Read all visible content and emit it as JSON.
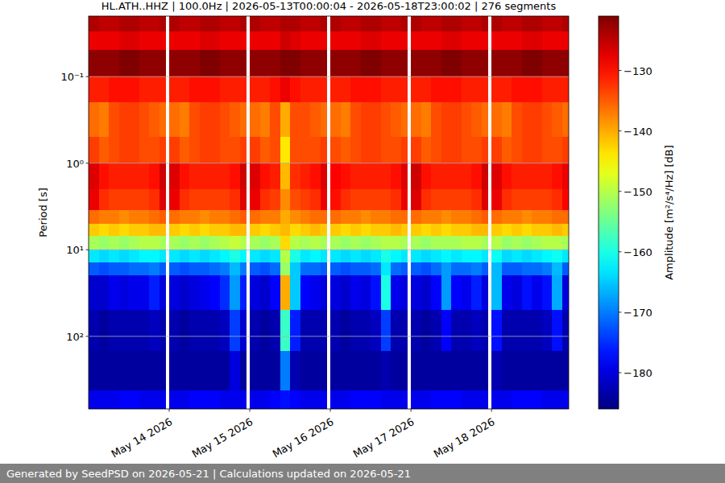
{
  "chart_data": {
    "type": "heatmap",
    "title": "HL.ATH..HHZ | 100.0Hz | 2026-05-13T00:00:04 - 2026-05-18T23:00:02 | 276 segments",
    "y_label": "Period [s]",
    "footer": "Generated by SeedPSD on 2026-05-21 | Calculations updated on 2026-05-21",
    "log": "y",
    "grid": true,
    "xlim": [
      "2026-05-13T00:00",
      "2026-05-18T23:00"
    ],
    "xticks": [
      {
        "value": "2026-05-14T00:00",
        "label": "May 14 2026"
      },
      {
        "value": "2026-05-15T00:00",
        "label": "May 15 2026"
      },
      {
        "value": "2026-05-16T00:00",
        "label": "May 16 2026"
      },
      {
        "value": "2026-05-17T00:00",
        "label": "May 17 2026"
      },
      {
        "value": "2026-05-18T00:00",
        "label": "May 18 2026"
      }
    ],
    "ylim": [
      690,
      0.02
    ],
    "yticks": [
      {
        "value": 0.1,
        "label": "10⁻¹"
      },
      {
        "value": 1,
        "label": "10⁰"
      },
      {
        "value": 10,
        "label": "10¹"
      },
      {
        "value": 100,
        "label": "10²"
      }
    ],
    "colorbar": {
      "label": "Amplitude [m²/s⁴/Hz] [dB]",
      "range": [
        -186,
        -121
      ],
      "ticks": [
        {
          "value": -130,
          "label": "−130"
        },
        {
          "value": -140,
          "label": "−140"
        },
        {
          "value": -150,
          "label": "−150"
        },
        {
          "value": -160,
          "label": "−160"
        },
        {
          "value": -170,
          "label": "−170"
        },
        {
          "value": -180,
          "label": "−180"
        }
      ]
    },
    "x": [
      "2026-05-13T00:00",
      "2026-05-13T03:00",
      "2026-05-13T06:00",
      "2026-05-13T09:00",
      "2026-05-13T12:00",
      "2026-05-13T15:00",
      "2026-05-13T18:00",
      "2026-05-13T21:00",
      "2026-05-13T23:00",
      "2026-05-14T00:00",
      "2026-05-14T03:00",
      "2026-05-14T06:00",
      "2026-05-14T09:00",
      "2026-05-14T12:00",
      "2026-05-14T15:00",
      "2026-05-14T18:00",
      "2026-05-14T21:00",
      "2026-05-14T23:00",
      "2026-05-15T00:00",
      "2026-05-15T03:00",
      "2026-05-15T06:00",
      "2026-05-15T09:00",
      "2026-05-15T12:00",
      "2026-05-15T15:00",
      "2026-05-15T18:00",
      "2026-05-15T21:00",
      "2026-05-15T23:00",
      "2026-05-16T00:00",
      "2026-05-16T03:00",
      "2026-05-16T06:00",
      "2026-05-16T09:00",
      "2026-05-16T12:00",
      "2026-05-16T15:00",
      "2026-05-16T18:00",
      "2026-05-16T21:00",
      "2026-05-16T23:00",
      "2026-05-17T00:00",
      "2026-05-17T03:00",
      "2026-05-17T06:00",
      "2026-05-17T09:00",
      "2026-05-17T12:00",
      "2026-05-17T15:00",
      "2026-05-17T18:00",
      "2026-05-17T21:00",
      "2026-05-17T23:00",
      "2026-05-18T00:00",
      "2026-05-18T03:00",
      "2026-05-18T06:00",
      "2026-05-18T09:00",
      "2026-05-18T12:00",
      "2026-05-18T15:00",
      "2026-05-18T18:00",
      "2026-05-18T21:00",
      "2026-05-18T23:00"
    ],
    "y": [
      0.02,
      0.03,
      0.05,
      0.1,
      0.2,
      0.5,
      1,
      2,
      3.5,
      5,
      7,
      10,
      14,
      20,
      50,
      150,
      420,
      690
    ],
    "values": [
      [
        -124,
        -128,
        -122,
        -131,
        -136,
        -133,
        -127,
        -128,
        -136,
        -142,
        -151,
        -163,
        -172,
        -181,
        -183,
        -184,
        -179
      ],
      [
        -125,
        -128,
        -122,
        -131,
        -137,
        -135,
        -130,
        -132,
        -137,
        -143,
        -152,
        -164,
        -173,
        -181,
        -184,
        -184,
        -179
      ],
      [
        -125,
        -128,
        -122,
        -130,
        -134,
        -134,
        -131,
        -133,
        -137,
        -142,
        -151,
        -163,
        -172,
        -179,
        -183,
        -184,
        -179
      ],
      [
        -124,
        -127,
        -121,
        -130,
        -133,
        -133,
        -131,
        -133,
        -138,
        -143,
        -152,
        -164,
        -172,
        -180,
        -183,
        -184,
        -178
      ],
      [
        -124,
        -127,
        -121,
        -130,
        -133,
        -133,
        -131,
        -133,
        -137,
        -142,
        -151,
        -163,
        -171,
        -179,
        -183,
        -184,
        -178
      ],
      [
        -125,
        -128,
        -122,
        -131,
        -134,
        -134,
        -131,
        -133,
        -137,
        -142,
        -150,
        -162,
        -171,
        -179,
        -183,
        -184,
        -179
      ],
      [
        -125,
        -128,
        -122,
        -131,
        -135,
        -134,
        -130,
        -132,
        -136,
        -141,
        -150,
        -162,
        -170,
        -176,
        -182,
        -184,
        -179
      ],
      [
        -124,
        -128,
        -122,
        -131,
        -136,
        -133,
        -126,
        -127,
        -135,
        -141,
        -151,
        -163,
        -172,
        -180,
        -183,
        -184,
        -179
      ],
      null,
      [
        -124,
        -128,
        -122,
        -131,
        -136,
        -133,
        -127,
        -128,
        -136,
        -142,
        -151,
        -163,
        -172,
        -180,
        -183,
        -184,
        -179
      ],
      [
        -125,
        -128,
        -122,
        -131,
        -137,
        -135,
        -130,
        -132,
        -137,
        -143,
        -152,
        -164,
        -173,
        -181,
        -184,
        -184,
        -179
      ],
      [
        -125,
        -128,
        -122,
        -130,
        -134,
        -134,
        -131,
        -133,
        -137,
        -142,
        -151,
        -163,
        -172,
        -180,
        -183,
        -184,
        -178
      ],
      [
        -124,
        -127,
        -121,
        -130,
        -133,
        -133,
        -131,
        -133,
        -138,
        -143,
        -152,
        -164,
        -172,
        -179,
        -183,
        -184,
        -178
      ],
      [
        -124,
        -127,
        -121,
        -130,
        -133,
        -133,
        -131,
        -133,
        -137,
        -142,
        -151,
        -163,
        -171,
        -178,
        -183,
        -184,
        -178
      ],
      [
        -125,
        -128,
        -122,
        -131,
        -134,
        -134,
        -131,
        -133,
        -137,
        -142,
        -150,
        -162,
        -170,
        -175,
        -182,
        -184,
        -179
      ],
      [
        -125,
        -128,
        -122,
        -131,
        -135,
        -134,
        -130,
        -132,
        -136,
        -141,
        -149,
        -160,
        -166,
        -168,
        -174,
        -180,
        -179
      ],
      [
        -124,
        -128,
        -122,
        -131,
        -136,
        -133,
        -126,
        -127,
        -135,
        -141,
        -150,
        -162,
        -170,
        -176,
        -181,
        -184,
        -179
      ],
      null,
      [
        -124,
        -128,
        -122,
        -131,
        -136,
        -133,
        -127,
        -128,
        -136,
        -142,
        -151,
        -163,
        -172,
        -180,
        -183,
        -184,
        -179
      ],
      [
        -125,
        -128,
        -122,
        -131,
        -137,
        -135,
        -130,
        -132,
        -137,
        -143,
        -152,
        -164,
        -173,
        -181,
        -184,
        -184,
        -179
      ],
      [
        -125,
        -128,
        -122,
        -130,
        -134,
        -134,
        -131,
        -133,
        -137,
        -142,
        -151,
        -163,
        -171,
        -178,
        -183,
        -184,
        -178
      ],
      [
        -124,
        -126,
        -121,
        -128,
        -140,
        -144,
        -141,
        -138,
        -140,
        -141,
        -143,
        -150,
        -152,
        -140,
        -158,
        -170,
        -177
      ],
      [
        -124,
        -127,
        -121,
        -130,
        -134,
        -134,
        -132,
        -134,
        -138,
        -143,
        -150,
        -160,
        -165,
        -165,
        -176,
        -183,
        -178
      ],
      [
        -125,
        -128,
        -122,
        -131,
        -134,
        -134,
        -131,
        -133,
        -137,
        -142,
        -151,
        -163,
        -171,
        -178,
        -183,
        -184,
        -179
      ],
      [
        -125,
        -128,
        -122,
        -131,
        -135,
        -134,
        -130,
        -132,
        -136,
        -141,
        -150,
        -162,
        -171,
        -179,
        -183,
        -184,
        -179
      ],
      [
        -124,
        -128,
        -122,
        -131,
        -136,
        -133,
        -127,
        -128,
        -136,
        -142,
        -151,
        -163,
        -172,
        -180,
        -183,
        -184,
        -179
      ],
      null,
      [
        -124,
        -128,
        -122,
        -131,
        -136,
        -134,
        -129,
        -130,
        -136,
        -142,
        -151,
        -163,
        -172,
        -180,
        -183,
        -184,
        -179
      ],
      [
        -125,
        -128,
        -122,
        -131,
        -137,
        -135,
        -130,
        -132,
        -137,
        -143,
        -152,
        -164,
        -173,
        -181,
        -184,
        -184,
        -179
      ],
      [
        -125,
        -128,
        -122,
        -130,
        -134,
        -134,
        -131,
        -133,
        -137,
        -142,
        -151,
        -163,
        -172,
        -179,
        -183,
        -184,
        -178
      ],
      [
        -124,
        -127,
        -121,
        -130,
        -133,
        -133,
        -131,
        -133,
        -138,
        -143,
        -152,
        -164,
        -172,
        -180,
        -183,
        -184,
        -178
      ],
      [
        -124,
        -127,
        -121,
        -130,
        -133,
        -133,
        -131,
        -133,
        -137,
        -142,
        -151,
        -163,
        -171,
        -177,
        -182,
        -184,
        -178
      ],
      [
        -125,
        -128,
        -122,
        -131,
        -134,
        -134,
        -131,
        -133,
        -137,
        -142,
        -150,
        -160,
        -163,
        -160,
        -174,
        -183,
        -179
      ],
      [
        -125,
        -128,
        -122,
        -131,
        -135,
        -134,
        -130,
        -132,
        -136,
        -141,
        -150,
        -162,
        -171,
        -179,
        -183,
        -184,
        -179
      ],
      [
        -124,
        -128,
        -122,
        -131,
        -136,
        -133,
        -127,
        -128,
        -136,
        -142,
        -151,
        -163,
        -172,
        -180,
        -183,
        -184,
        -179
      ],
      null,
      [
        -124,
        -128,
        -122,
        -131,
        -136,
        -133,
        -126,
        -127,
        -136,
        -142,
        -151,
        -163,
        -172,
        -180,
        -183,
        -184,
        -179
      ],
      [
        -125,
        -128,
        -122,
        -131,
        -137,
        -135,
        -130,
        -132,
        -137,
        -143,
        -152,
        -164,
        -173,
        -181,
        -184,
        -184,
        -179
      ],
      [
        -125,
        -128,
        -122,
        -130,
        -134,
        -134,
        -131,
        -133,
        -137,
        -142,
        -151,
        -163,
        -171,
        -178,
        -183,
        -184,
        -178
      ],
      [
        -124,
        -127,
        -121,
        -130,
        -133,
        -133,
        -131,
        -133,
        -138,
        -143,
        -151,
        -162,
        -168,
        -168,
        -178,
        -184,
        -178
      ],
      [
        -124,
        -127,
        -121,
        -130,
        -133,
        -133,
        -131,
        -133,
        -137,
        -142,
        -151,
        -163,
        -171,
        -178,
        -183,
        -184,
        -178
      ],
      [
        -125,
        -128,
        -122,
        -131,
        -134,
        -134,
        -131,
        -133,
        -137,
        -142,
        -150,
        -162,
        -171,
        -179,
        -183,
        -184,
        -179
      ],
      [
        -125,
        -128,
        -122,
        -131,
        -135,
        -134,
        -130,
        -132,
        -136,
        -141,
        -150,
        -162,
        -170,
        -176,
        -182,
        -184,
        -179
      ],
      [
        -124,
        -128,
        -122,
        -131,
        -136,
        -133,
        -126,
        -127,
        -135,
        -141,
        -151,
        -163,
        -172,
        -180,
        -183,
        -184,
        -179
      ],
      null,
      [
        -124,
        -128,
        -122,
        -131,
        -136,
        -133,
        -127,
        -128,
        -136,
        -142,
        -150,
        -161,
        -166,
        -166,
        -177,
        -183,
        -179
      ],
      [
        -125,
        -128,
        -122,
        -131,
        -137,
        -135,
        -130,
        -132,
        -137,
        -143,
        -152,
        -164,
        -172,
        -179,
        -183,
        -184,
        -179
      ],
      [
        -125,
        -128,
        -122,
        -130,
        -134,
        -134,
        -131,
        -133,
        -137,
        -142,
        -151,
        -163,
        -172,
        -180,
        -183,
        -184,
        -178
      ],
      [
        -124,
        -127,
        -121,
        -130,
        -133,
        -133,
        -131,
        -133,
        -138,
        -143,
        -152,
        -164,
        -171,
        -177,
        -183,
        -184,
        -178
      ],
      [
        -124,
        -127,
        -121,
        -130,
        -133,
        -133,
        -131,
        -133,
        -137,
        -142,
        -151,
        -163,
        -171,
        -179,
        -183,
        -184,
        -178
      ],
      [
        -125,
        -128,
        -122,
        -131,
        -134,
        -134,
        -131,
        -133,
        -137,
        -142,
        -150,
        -162,
        -170,
        -177,
        -182,
        -184,
        -179
      ],
      [
        -125,
        -128,
        -122,
        -131,
        -135,
        -134,
        -130,
        -132,
        -136,
        -141,
        -150,
        -161,
        -166,
        -167,
        -177,
        -184,
        -179
      ],
      [
        -124,
        -128,
        -122,
        -131,
        -136,
        -133,
        -128,
        -129,
        -136,
        -142,
        -151,
        -163,
        -172,
        -180,
        -183,
        -184,
        -179
      ]
    ]
  }
}
